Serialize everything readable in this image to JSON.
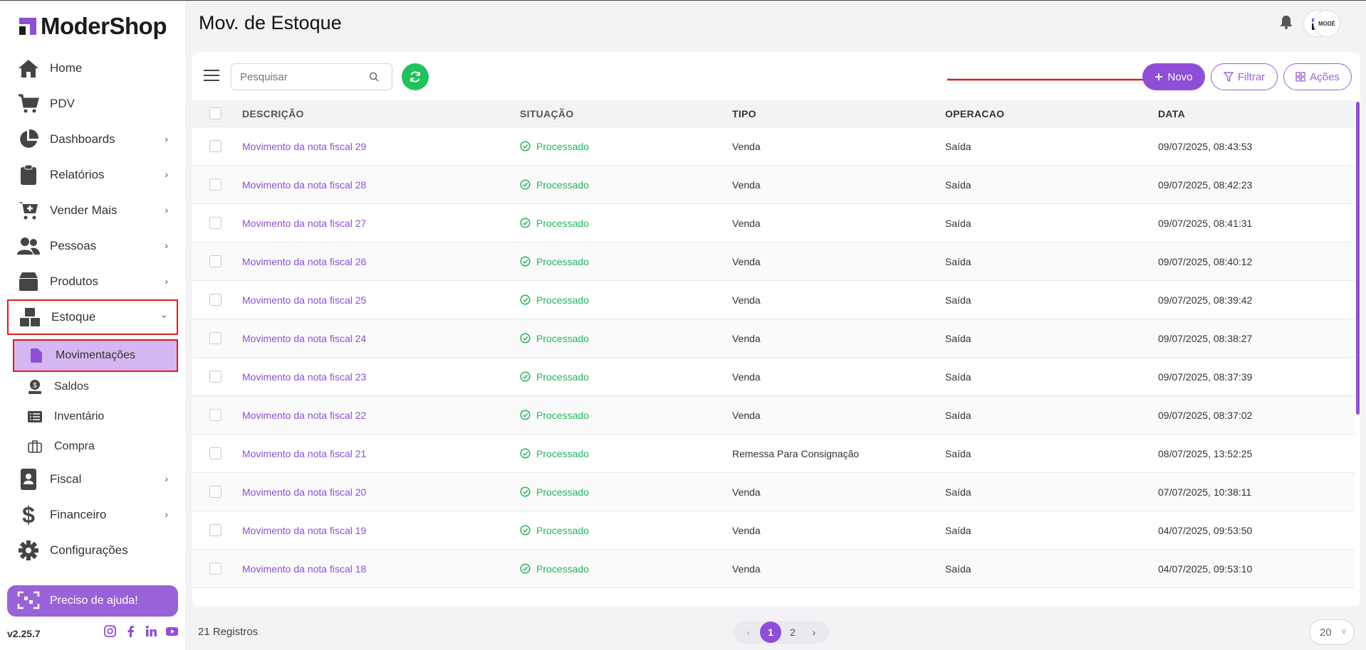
{
  "app": {
    "logo_text": "ModerShop",
    "page_title": "Mov. de Estoque",
    "avatar_text": "MODÉ",
    "accent": "#8e4fd6"
  },
  "sidebar": {
    "items": [
      {
        "label": "Home",
        "icon": "home-icon"
      },
      {
        "label": "PDV",
        "icon": "cart-icon"
      },
      {
        "label": "Dashboards",
        "icon": "pie-chart-icon",
        "chevron": true
      },
      {
        "label": "Relatórios",
        "icon": "clipboard-icon",
        "chevron": true
      },
      {
        "label": "Vender Mais",
        "icon": "cart-plus-icon",
        "chevron": true
      },
      {
        "label": "Pessoas",
        "icon": "users-icon",
        "chevron": true
      },
      {
        "label": "Produtos",
        "icon": "box-icon",
        "chevron": true
      },
      {
        "label": "Estoque",
        "icon": "boxes-icon",
        "chevron": true,
        "expanded": true
      },
      {
        "label": "Fiscal",
        "icon": "id-badge-icon",
        "chevron": true
      },
      {
        "label": "Financeiro",
        "icon": "dollar-icon",
        "chevron": true
      },
      {
        "label": "Configurações",
        "icon": "gear-icon"
      }
    ],
    "estoque_sub": [
      {
        "label": "Movimentações",
        "icon": "file-icon",
        "active": true
      },
      {
        "label": "Saldos",
        "icon": "hand-coin-icon"
      },
      {
        "label": "Inventário",
        "icon": "list-icon"
      },
      {
        "label": "Compra",
        "icon": "briefcase-icon"
      }
    ],
    "help_label": "Preciso de ajuda!",
    "version": "v2.25.7",
    "socials": [
      "instagram-icon",
      "facebook-icon",
      "linkedin-icon",
      "youtube-icon"
    ]
  },
  "toolbar": {
    "search_placeholder": "Pesquisar",
    "novo_label": "Novo",
    "filtrar_label": "Filtrar",
    "acoes_label": "Ações"
  },
  "table": {
    "columns": [
      "DESCRIÇÃO",
      "SITUAÇÃO",
      "TIPO",
      "OPERACAO",
      "DATA"
    ],
    "rows": [
      {
        "desc": "Movimento da nota fiscal 29",
        "sit": "Processado",
        "tipo": "Venda",
        "op": "Saída",
        "data": "09/07/2025, 08:43:53"
      },
      {
        "desc": "Movimento da nota fiscal 28",
        "sit": "Processado",
        "tipo": "Venda",
        "op": "Saída",
        "data": "09/07/2025, 08:42:23"
      },
      {
        "desc": "Movimento da nota fiscal 27",
        "sit": "Processado",
        "tipo": "Venda",
        "op": "Saída",
        "data": "09/07/2025, 08:41:31"
      },
      {
        "desc": "Movimento da nota fiscal 26",
        "sit": "Processado",
        "tipo": "Venda",
        "op": "Saída",
        "data": "09/07/2025, 08:40:12"
      },
      {
        "desc": "Movimento da nota fiscal 25",
        "sit": "Processado",
        "tipo": "Venda",
        "op": "Saída",
        "data": "09/07/2025, 08:39:42"
      },
      {
        "desc": "Movimento da nota fiscal 24",
        "sit": "Processado",
        "tipo": "Venda",
        "op": "Saída",
        "data": "09/07/2025, 08:38:27"
      },
      {
        "desc": "Movimento da nota fiscal 23",
        "sit": "Processado",
        "tipo": "Venda",
        "op": "Saída",
        "data": "09/07/2025, 08:37:39"
      },
      {
        "desc": "Movimento da nota fiscal 22",
        "sit": "Processado",
        "tipo": "Venda",
        "op": "Saída",
        "data": "09/07/2025, 08:37:02"
      },
      {
        "desc": "Movimento da nota fiscal 21",
        "sit": "Processado",
        "tipo": "Remessa Para Consignação",
        "op": "Saída",
        "data": "08/07/2025, 13:52:25"
      },
      {
        "desc": "Movimento da nota fiscal 20",
        "sit": "Processado",
        "tipo": "Venda",
        "op": "Saída",
        "data": "07/07/2025, 10:38:11"
      },
      {
        "desc": "Movimento da nota fiscal 19",
        "sit": "Processado",
        "tipo": "Venda",
        "op": "Saída",
        "data": "04/07/2025, 09:53:50"
      },
      {
        "desc": "Movimento da nota fiscal 18",
        "sit": "Processado",
        "tipo": "Venda",
        "op": "Saída",
        "data": "04/07/2025, 09:53:10"
      }
    ]
  },
  "footer": {
    "records": "21 Registros",
    "pages": [
      "1",
      "2"
    ],
    "current_page": "1",
    "per_page": "20"
  }
}
